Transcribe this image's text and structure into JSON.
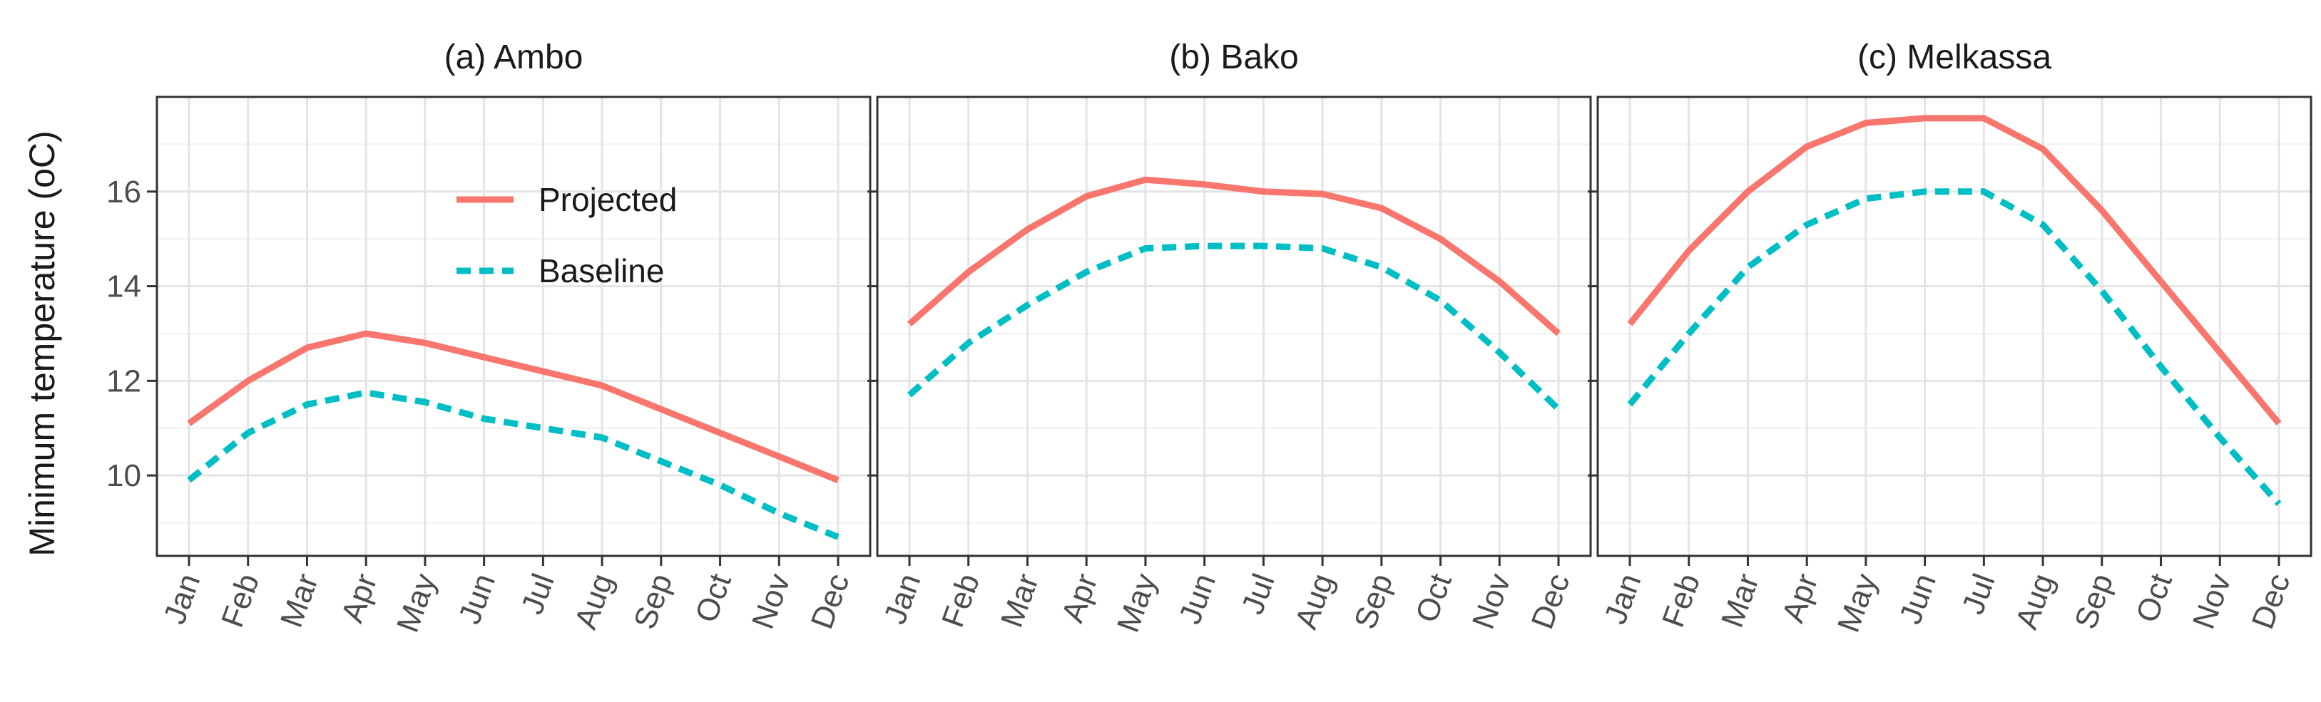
{
  "chart_data": {
    "type": "line",
    "ylabel": "Minimum temperature (oC)",
    "xlabel": "",
    "months": [
      "Jan",
      "Feb",
      "Mar",
      "Apr",
      "May",
      "Jun",
      "Jul",
      "Aug",
      "Sep",
      "Oct",
      "Nov",
      "Dec"
    ],
    "ylim": [
      8.3,
      18.0
    ],
    "yticks": [
      10,
      12,
      14,
      16
    ],
    "grid": true,
    "legend": {
      "position": "inside-top-center of first panel",
      "entries": [
        {
          "name": "Projected",
          "color": "#F8766D",
          "dash": "solid"
        },
        {
          "name": "Baseline",
          "color": "#00BFC4",
          "dash": "dashed"
        }
      ]
    },
    "panels": [
      {
        "title": "(a) Ambo",
        "series": [
          {
            "name": "Projected",
            "values": [
              11.1,
              12.0,
              12.7,
              13.0,
              12.8,
              12.5,
              12.2,
              11.9,
              11.4,
              10.9,
              10.4,
              9.9
            ]
          },
          {
            "name": "Baseline",
            "values": [
              9.9,
              10.9,
              11.5,
              11.75,
              11.55,
              11.2,
              11.0,
              10.8,
              10.3,
              9.8,
              9.2,
              8.7
            ]
          }
        ]
      },
      {
        "title": "(b) Bako",
        "series": [
          {
            "name": "Projected",
            "values": [
              13.2,
              14.3,
              15.2,
              15.9,
              16.25,
              16.15,
              16.0,
              15.95,
              15.65,
              15.0,
              14.1,
              13.0
            ]
          },
          {
            "name": "Baseline",
            "values": [
              11.7,
              12.8,
              13.6,
              14.3,
              14.8,
              14.85,
              14.85,
              14.8,
              14.4,
              13.7,
              12.6,
              11.4
            ]
          }
        ]
      },
      {
        "title": "(c) Melkassa",
        "series": [
          {
            "name": "Projected",
            "values": [
              13.2,
              14.75,
              16.0,
              16.95,
              17.45,
              17.55,
              17.55,
              16.9,
              15.6,
              14.1,
              12.6,
              11.1
            ]
          },
          {
            "name": "Baseline",
            "values": [
              11.5,
              13.0,
              14.4,
              15.3,
              15.85,
              16.0,
              16.0,
              15.3,
              13.9,
              12.3,
              10.8,
              9.4
            ]
          }
        ]
      }
    ]
  }
}
